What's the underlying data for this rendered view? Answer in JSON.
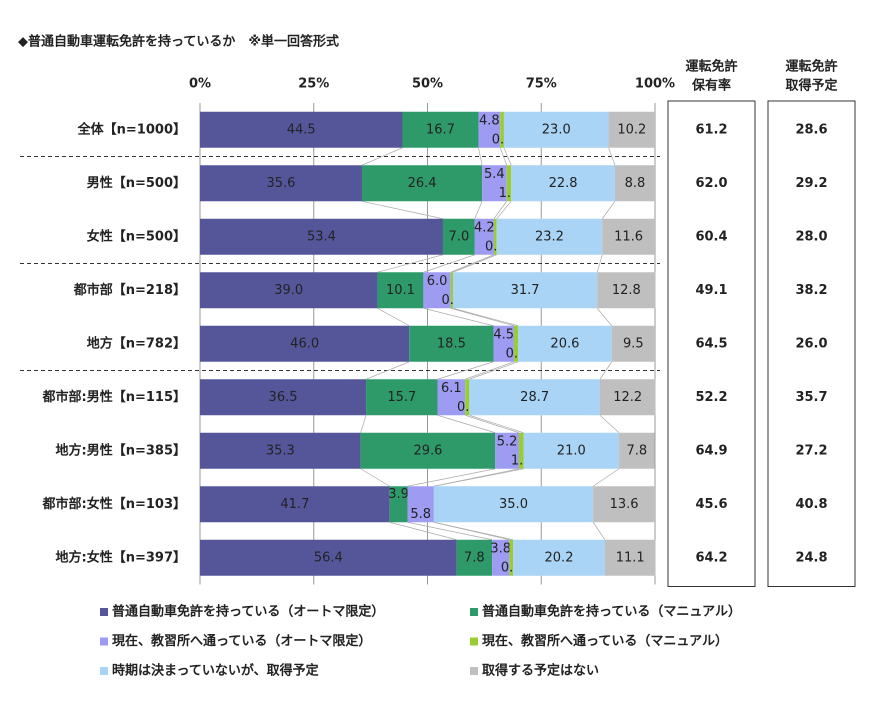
{
  "chart_data": {
    "type": "stacked-bar",
    "title": "◆普通自動車運転免許を持っているか　※単一回答形式",
    "categories": [
      "全体【n=1000】",
      "男性【n=500】",
      "女性【n=500】",
      "都市部【n=218】",
      "地方【n=782】",
      "都市部:男性【n=115】",
      "地方:男性【n=385】",
      "都市部:女性【n=103】",
      "地方:女性【n=397】"
    ],
    "xlim": [
      0,
      100
    ],
    "xticks": [
      {
        "value": 0,
        "label": "0%"
      },
      {
        "value": 25,
        "label": "25%"
      },
      {
        "value": 50,
        "label": "50%"
      },
      {
        "value": 75,
        "label": "75%"
      },
      {
        "value": 100,
        "label": "100%"
      }
    ],
    "grid": true,
    "series": [
      {
        "name": "普通自動車免許を持っている（オートマ限定）",
        "color": "#55569a",
        "values": [
          44.5,
          35.6,
          53.4,
          39.0,
          46.0,
          36.5,
          35.3,
          41.7,
          56.4
        ],
        "value_labels": [
          "44.5",
          "35.6",
          "53.4",
          "39.0",
          "46.0",
          "36.5",
          "35.3",
          "41.7",
          "56.4"
        ]
      },
      {
        "name": "普通自動車免許を持っている（マニュアル）",
        "color": "#2e9a6a",
        "values": [
          16.7,
          26.4,
          7.0,
          10.1,
          18.5,
          15.7,
          29.6,
          3.9,
          7.8
        ],
        "value_labels": [
          "16.7",
          "26.4",
          "7.0",
          "10.1",
          "18.5",
          "15.7",
          "29.6",
          "3.9",
          "7.8"
        ]
      },
      {
        "name": "現在、教習所へ通っている（オートマ限定）",
        "color": "#9e9cf2",
        "values": [
          4.8,
          5.4,
          4.2,
          6.0,
          4.5,
          6.1,
          5.2,
          5.8,
          3.8
        ],
        "value_labels": [
          "4.8",
          "5.4",
          "4.2",
          "6.0",
          "4.5",
          "6.1",
          "5.2",
          "5.8",
          "3.8"
        ]
      },
      {
        "name": "現在、教習所へ通っている（マニュアル）",
        "color": "#9acd32",
        "values": [
          0.8,
          1.0,
          0.6,
          0.5,
          0.9,
          0.9,
          1.0,
          null,
          0.8
        ],
        "value_labels": [
          "0.8",
          "1.0",
          "0.6",
          "0.5",
          "0.9",
          "0.9",
          "1.0",
          null,
          "0.8"
        ]
      },
      {
        "name": "時期は決まっていないが、取得予定",
        "color": "#a9d4f5",
        "values": [
          23.0,
          22.8,
          23.2,
          31.7,
          20.6,
          28.7,
          21.0,
          35.0,
          20.2
        ],
        "value_labels": [
          "23.0",
          "22.8",
          "23.2",
          "31.7",
          "20.6",
          "28.7",
          "21.0",
          "35.0",
          "20.2"
        ]
      },
      {
        "name": "取得する予定はない",
        "color": "#bfbfbf",
        "values": [
          10.2,
          8.8,
          11.6,
          12.8,
          9.5,
          12.2,
          7.8,
          13.6,
          11.1
        ],
        "value_labels": [
          "10.2",
          "8.8",
          "11.6",
          "12.8",
          "9.5",
          "12.2",
          "7.8",
          "13.6",
          "11.1"
        ]
      }
    ],
    "table": {
      "columns": [
        [
          "運転免許",
          "保有率"
        ],
        [
          "運転免許",
          "取得予定"
        ]
      ],
      "rows": [
        [
          "61.2",
          "28.6"
        ],
        [
          "62.0",
          "29.2"
        ],
        [
          "60.4",
          "28.0"
        ],
        [
          "49.1",
          "38.2"
        ],
        [
          "64.5",
          "26.0"
        ],
        [
          "52.2",
          "35.7"
        ],
        [
          "64.9",
          "27.2"
        ],
        [
          "45.6",
          "40.8"
        ],
        [
          "64.2",
          "24.8"
        ]
      ]
    }
  }
}
